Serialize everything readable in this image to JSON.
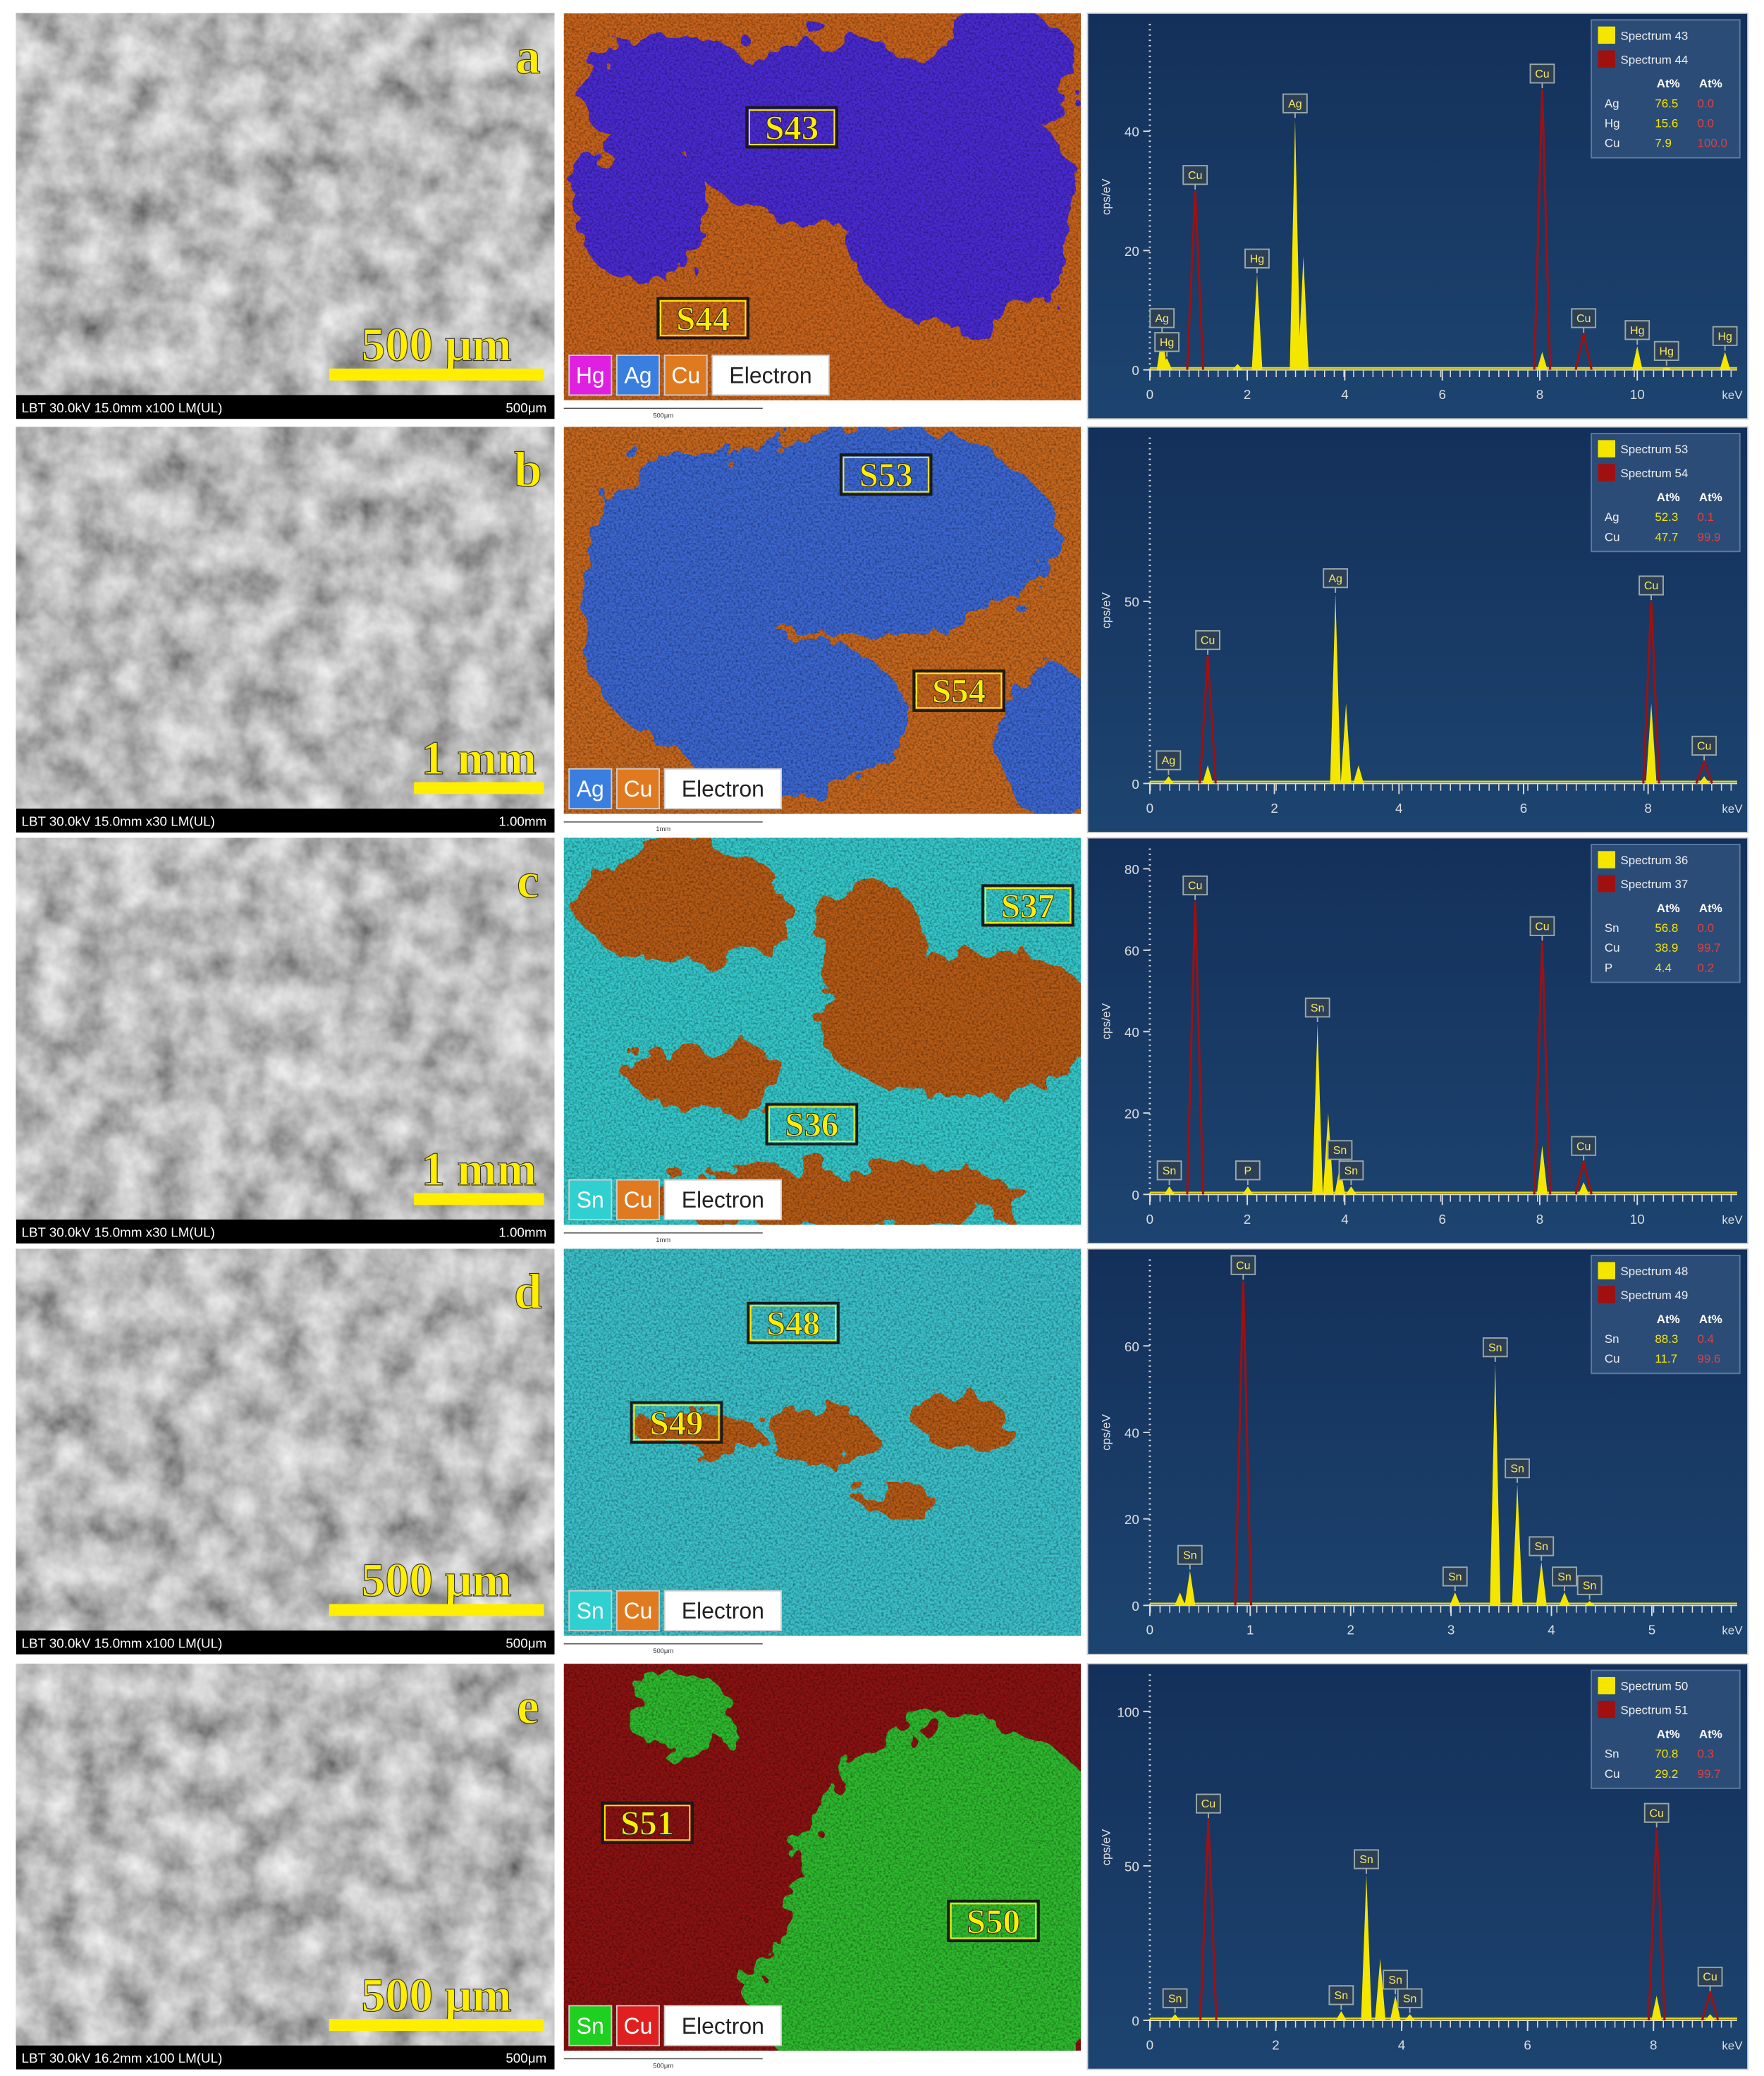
{
  "panels": [
    {
      "label": "a",
      "sem": {
        "footer_left": "LBT 30.0kV 15.0mm x100 LM(UL)",
        "footer_right": "500μm",
        "scale_text": "500 μm"
      },
      "map": {
        "regions": [
          "S43",
          "S44"
        ],
        "legend": [
          {
            "name": "Hg",
            "color": "#e020e0"
          },
          {
            "name": "Ag",
            "color": "#3a7ee0"
          },
          {
            "name": "Cu",
            "color": "#e07a20"
          },
          {
            "name": "Electron",
            "color": "#ffffff"
          }
        ],
        "scale_text": "500μm"
      },
      "spectrum": {
        "type": "spectrum",
        "xlim": [
          0,
          12.05
        ],
        "xticks": [
          0,
          2,
          4,
          6,
          8,
          10
        ],
        "x_unit": "keV",
        "ylim": [
          0,
          58
        ],
        "yticks": [
          0,
          20,
          40
        ],
        "y_label": "cps/eV",
        "series": [
          {
            "name": "Spectrum 43",
            "color": "#f5e600",
            "peaks": [
              {
                "x": 0.25,
                "height": 6,
                "label": "Ag"
              },
              {
                "x": 0.35,
                "height": 2,
                "label": "Hg"
              },
              {
                "x": 1.8,
                "height": 1
              },
              {
                "x": 2.2,
                "height": 16,
                "label": "Hg"
              },
              {
                "x": 2.98,
                "height": 42,
                "label": "Ag"
              },
              {
                "x": 3.15,
                "height": 19
              },
              {
                "x": 8.05,
                "height": 3
              },
              {
                "x": 10,
                "height": 4,
                "label": "Hg"
              },
              {
                "x": 10.6,
                "height": 0.5,
                "label": "Hg"
              },
              {
                "x": 11.8,
                "height": 3,
                "label": "Hg"
              }
            ]
          },
          {
            "name": "Spectrum 44",
            "color": "#a01010",
            "peaks": [
              {
                "x": 0.93,
                "height": 30,
                "label": "Cu"
              },
              {
                "x": 8.05,
                "height": 47,
                "label": "Cu"
              },
              {
                "x": 8.9,
                "height": 6,
                "label": "Cu"
              }
            ]
          }
        ],
        "table": {
          "header": [
            "At%",
            "At%"
          ],
          "rows": [
            [
              "Ag",
              "76.5",
              "0.0"
            ],
            [
              "Hg",
              "15.6",
              "0.0"
            ],
            [
              "Cu",
              "7.9",
              "100.0"
            ]
          ]
        }
      }
    },
    {
      "label": "b",
      "sem": {
        "footer_left": "LBT 30.0kV 15.0mm x30 LM(UL)",
        "footer_right": "1.00mm",
        "scale_text": "1 mm"
      },
      "map": {
        "regions": [
          "S53",
          "S54"
        ],
        "legend": [
          {
            "name": "Ag",
            "color": "#3a7ee0"
          },
          {
            "name": "Cu",
            "color": "#e07a20"
          },
          {
            "name": "Electron",
            "color": "#ffffff"
          }
        ],
        "scale_text": "1mm"
      },
      "spectrum": {
        "type": "spectrum",
        "xlim": [
          0,
          9.43
        ],
        "xticks": [
          0,
          2,
          4,
          6,
          8
        ],
        "x_unit": "keV",
        "ylim": [
          0,
          95
        ],
        "yticks": [
          0,
          50
        ],
        "y_label": "cps/eV",
        "series": [
          {
            "name": "Spectrum 53",
            "color": "#f5e600",
            "peaks": [
              {
                "x": 0.3,
                "height": 2,
                "label": "Ag"
              },
              {
                "x": 0.93,
                "height": 5
              },
              {
                "x": 2.98,
                "height": 52,
                "label": "Ag"
              },
              {
                "x": 3.15,
                "height": 22
              },
              {
                "x": 3.35,
                "height": 5
              },
              {
                "x": 8.05,
                "height": 22
              },
              {
                "x": 8.9,
                "height": 2
              }
            ]
          },
          {
            "name": "Spectrum 54",
            "color": "#a01010",
            "peaks": [
              {
                "x": 0.93,
                "height": 35,
                "label": "Cu"
              },
              {
                "x": 8.05,
                "height": 50,
                "label": "Cu"
              },
              {
                "x": 8.9,
                "height": 6,
                "label": "Cu"
              }
            ]
          }
        ],
        "table": {
          "header": [
            "At%",
            "At%"
          ],
          "rows": [
            [
              "Ag",
              "52.3",
              "0.1"
            ],
            [
              "Cu",
              "47.7",
              "99.9"
            ]
          ]
        }
      }
    },
    {
      "label": "c",
      "sem": {
        "footer_left": "LBT 30.0kV 15.0mm x30 LM(UL)",
        "footer_right": "1.00mm",
        "scale_text": "1 mm"
      },
      "map": {
        "regions": [
          "S37",
          "S36"
        ],
        "legend": [
          {
            "name": "Sn",
            "color": "#30d0d0"
          },
          {
            "name": "Cu",
            "color": "#e07a20"
          },
          {
            "name": "Electron",
            "color": "#ffffff"
          }
        ],
        "scale_text": "1mm"
      },
      "spectrum": {
        "type": "spectrum",
        "xlim": [
          0,
          12.05
        ],
        "xticks": [
          0,
          2,
          4,
          6,
          8,
          10
        ],
        "x_unit": "keV",
        "ylim": [
          0,
          85
        ],
        "yticks": [
          0,
          20,
          40,
          60,
          80
        ],
        "y_label": "cps/eV",
        "series": [
          {
            "name": "Spectrum 36",
            "color": "#f5e600",
            "peaks": [
              {
                "x": 0.4,
                "height": 2,
                "label": "Sn"
              },
              {
                "x": 2.01,
                "height": 2,
                "label": "P"
              },
              {
                "x": 3.44,
                "height": 42,
                "label": "Sn"
              },
              {
                "x": 3.66,
                "height": 20
              },
              {
                "x": 3.9,
                "height": 7,
                "label": "Sn"
              },
              {
                "x": 4.13,
                "height": 2,
                "label": "Sn"
              },
              {
                "x": 8.05,
                "height": 12
              },
              {
                "x": 8.9,
                "height": 3
              }
            ]
          },
          {
            "name": "Spectrum 37",
            "color": "#a01010",
            "peaks": [
              {
                "x": 0.93,
                "height": 72,
                "label": "Cu"
              },
              {
                "x": 8.05,
                "height": 62,
                "label": "Cu"
              },
              {
                "x": 8.9,
                "height": 8,
                "label": "Cu"
              }
            ]
          }
        ],
        "table": {
          "header": [
            "At%",
            "At%"
          ],
          "rows": [
            [
              "Sn",
              "56.8",
              "0.0"
            ],
            [
              "Cu",
              "38.9",
              "99.7"
            ],
            [
              "P",
              "4.4",
              "0.2"
            ]
          ]
        }
      }
    },
    {
      "label": "d",
      "sem": {
        "footer_left": "LBT 30.0kV 15.0mm x100 LM(UL)",
        "footer_right": "500μm",
        "scale_text": "500 μm"
      },
      "map": {
        "regions": [
          "S48",
          "S49"
        ],
        "legend": [
          {
            "name": "Sn",
            "color": "#30d0d0"
          },
          {
            "name": "Cu",
            "color": "#e07a20"
          },
          {
            "name": "Electron",
            "color": "#ffffff"
          }
        ],
        "scale_text": "500μm"
      },
      "spectrum": {
        "type": "spectrum",
        "xlim": [
          0,
          5.85
        ],
        "xticks": [
          0,
          1,
          2,
          3,
          4,
          5
        ],
        "x_unit": "keV",
        "ylim": [
          0,
          80
        ],
        "yticks": [
          0,
          20,
          40,
          60
        ],
        "y_label": "cps/eV",
        "series": [
          {
            "name": "Spectrum 48",
            "color": "#f5e600",
            "peaks": [
              {
                "x": 0.3,
                "height": 3
              },
              {
                "x": 0.4,
                "height": 8,
                "label": "Sn"
              },
              {
                "x": 3.04,
                "height": 3,
                "label": "Sn"
              },
              {
                "x": 3.44,
                "height": 56,
                "label": "Sn"
              },
              {
                "x": 3.66,
                "height": 28,
                "label": "Sn"
              },
              {
                "x": 3.9,
                "height": 10,
                "label": "Sn"
              },
              {
                "x": 4.13,
                "height": 3,
                "label": "Sn"
              },
              {
                "x": 4.38,
                "height": 1,
                "label": "Sn"
              }
            ]
          },
          {
            "name": "Spectrum 49",
            "color": "#a01010",
            "peaks": [
              {
                "x": 0.93,
                "height": 75,
                "label": "Cu"
              }
            ]
          }
        ],
        "table": {
          "header": [
            "At%",
            "At%"
          ],
          "rows": [
            [
              "Sn",
              "88.3",
              "0.4"
            ],
            [
              "Cu",
              "11.7",
              "99.6"
            ]
          ]
        }
      }
    },
    {
      "label": "e",
      "sem": {
        "footer_left": "LBT 30.0kV 16.2mm x100 LM(UL)",
        "footer_right": "500μm",
        "scale_text": "500 μm"
      },
      "map": {
        "regions": [
          "S51",
          "S50"
        ],
        "legend": [
          {
            "name": "Sn",
            "color": "#20d020"
          },
          {
            "name": "Cu",
            "color": "#e02020"
          },
          {
            "name": "Electron",
            "color": "#ffffff"
          }
        ],
        "scale_text": "500μm"
      },
      "spectrum": {
        "type": "spectrum",
        "xlim": [
          0,
          9.33
        ],
        "xticks": [
          0,
          2,
          4,
          6,
          8
        ],
        "x_unit": "keV",
        "ylim": [
          0,
          112
        ],
        "yticks": [
          0,
          50,
          100
        ],
        "y_label": "cps/eV",
        "series": [
          {
            "name": "Spectrum 50",
            "color": "#f5e600",
            "peaks": [
              {
                "x": 0.4,
                "height": 2,
                "label": "Sn"
              },
              {
                "x": 3.04,
                "height": 3,
                "label": "Sn"
              },
              {
                "x": 3.44,
                "height": 47,
                "label": "Sn"
              },
              {
                "x": 3.66,
                "height": 20
              },
              {
                "x": 3.9,
                "height": 8,
                "label": "Sn"
              },
              {
                "x": 4.13,
                "height": 2,
                "label": "Sn"
              },
              {
                "x": 8.05,
                "height": 8
              },
              {
                "x": 8.9,
                "height": 2
              }
            ]
          },
          {
            "name": "Spectrum 51",
            "color": "#a01010",
            "peaks": [
              {
                "x": 0.93,
                "height": 65,
                "label": "Cu"
              },
              {
                "x": 8.05,
                "height": 62,
                "label": "Cu"
              },
              {
                "x": 8.9,
                "height": 9,
                "label": "Cu"
              }
            ]
          }
        ],
        "table": {
          "header": [
            "At%",
            "At%"
          ],
          "rows": [
            [
              "Sn",
              "70.8",
              "0.3"
            ],
            [
              "Cu",
              "29.2",
              "99.7"
            ]
          ]
        }
      }
    }
  ]
}
